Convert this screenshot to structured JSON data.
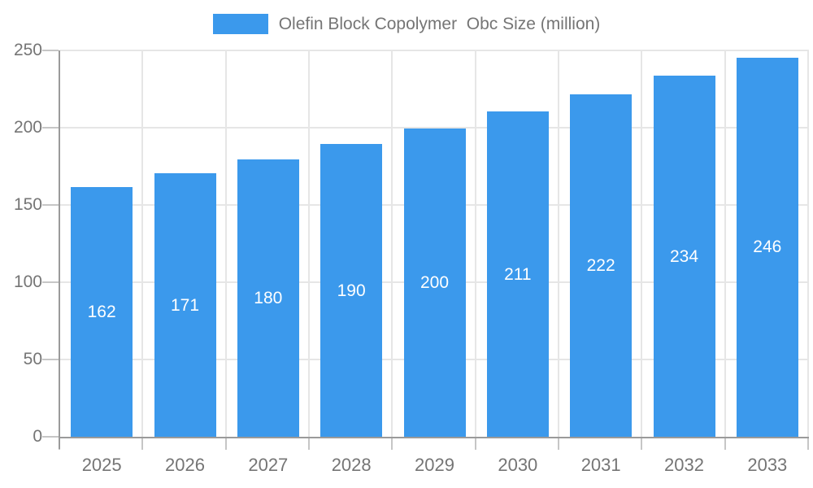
{
  "legend": {
    "label": "Olefin Block Copolymer  Obc Size (million)"
  },
  "chart_data": {
    "type": "bar",
    "title": "",
    "xlabel": "",
    "ylabel": "",
    "categories": [
      "2025",
      "2026",
      "2027",
      "2028",
      "2029",
      "2030",
      "2031",
      "2032",
      "2033"
    ],
    "series": [
      {
        "name": "Olefin Block Copolymer  Obc Size (million)",
        "values": [
          162,
          171,
          180,
          190,
          200,
          211,
          222,
          234,
          246
        ]
      }
    ],
    "value_labels_shown": true,
    "ylim": [
      0,
      250
    ],
    "yticks": [
      0,
      50,
      100,
      150,
      200,
      250
    ],
    "grid": true,
    "legend_position": "top",
    "colors": {
      "bar": "#3B99EC",
      "bar_value_text": "#FFFFFF",
      "axis_text": "#757575",
      "axis_line": "#9A9A9A",
      "tick_mark": "#C6C6C6",
      "gridline": "#E6E6E6",
      "background": "#FFFFFF"
    }
  }
}
